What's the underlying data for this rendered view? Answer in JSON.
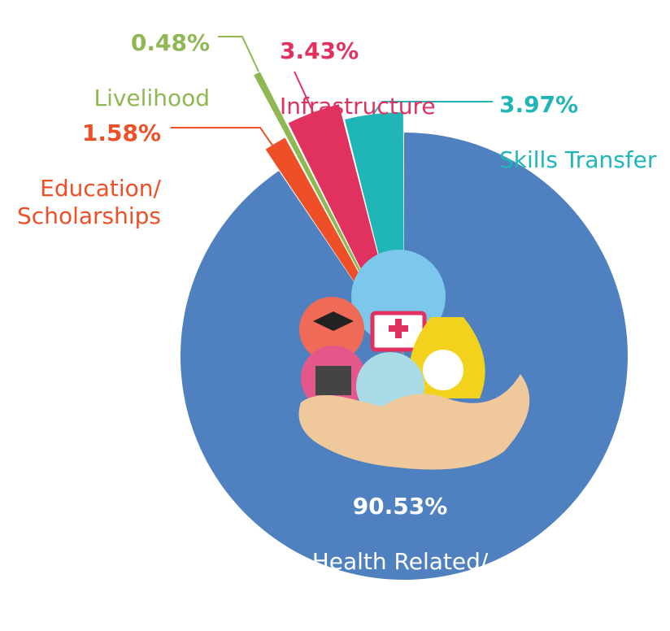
{
  "chart_data": {
    "type": "pie",
    "categories": [
      "Health Related/\nMedical Mission",
      "Education/\nScholarships",
      "Livelihood",
      "Infrastructure",
      "Skills Transfer"
    ],
    "values": [
      90.53,
      1.58,
      0.48,
      3.43,
      3.97
    ],
    "value_labels": [
      "90.53%",
      "1.58%",
      "0.48%",
      "3.43%",
      "3.97%"
    ],
    "colors": [
      "#4f80bf",
      "#ee4f26",
      "#8fb853",
      "#e0315f",
      "#20b5b7"
    ]
  }
}
